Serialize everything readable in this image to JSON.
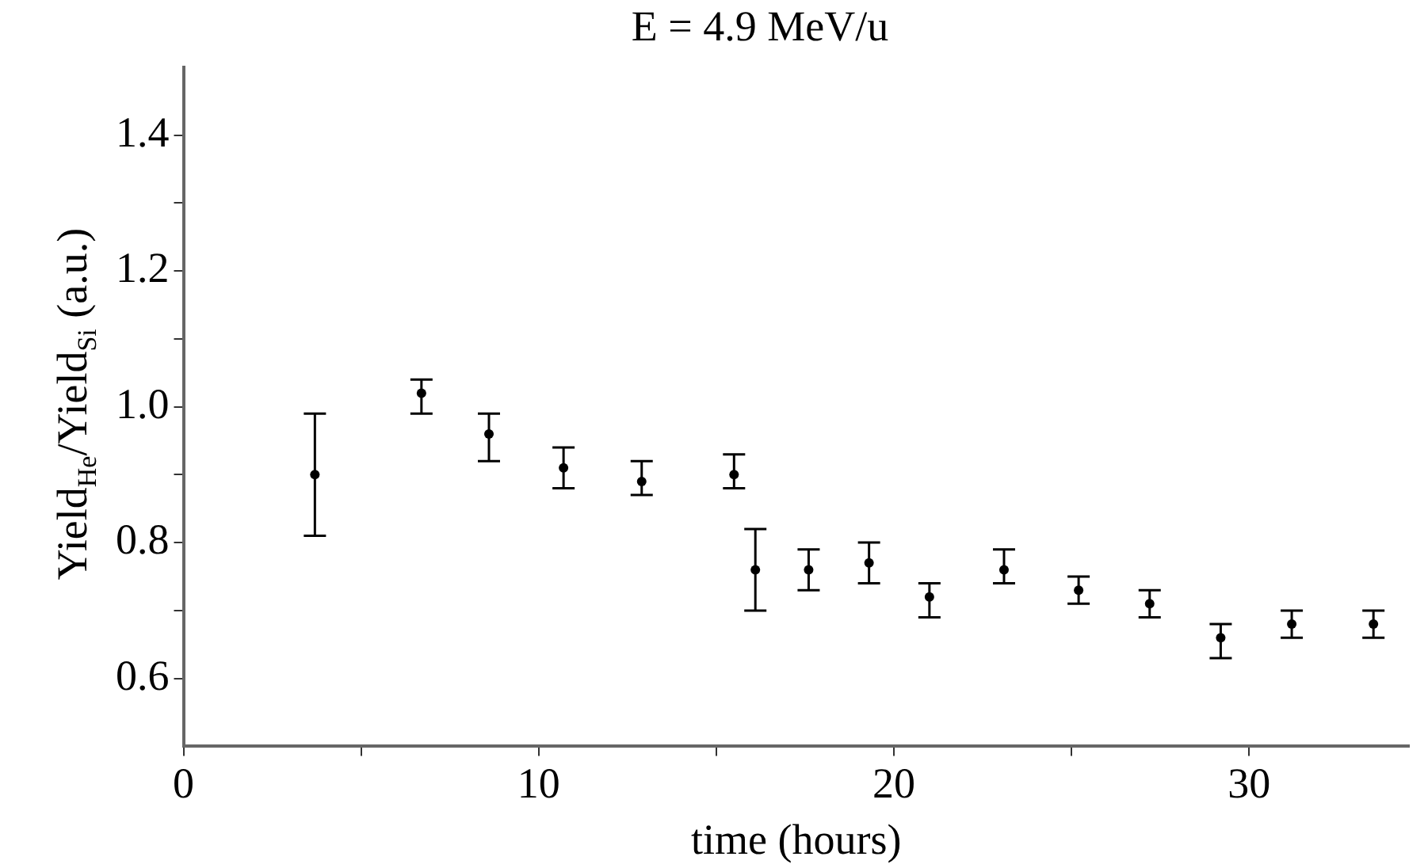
{
  "chart_data": {
    "type": "scatter",
    "title": "E = 4.9 MeV/u",
    "xlabel": "time (hours)",
    "ylabel": "Yield$_{He}$/Yield$_{Si}$ (a.u.)",
    "x": [
      3.7,
      6.7,
      8.6,
      10.7,
      12.9,
      15.5,
      16.1,
      17.6,
      19.3,
      21.0,
      23.1,
      25.2,
      27.2,
      29.2,
      31.2,
      33.5
    ],
    "series": [
      {
        "color": "#000000",
        "values": [
          0.9,
          1.02,
          0.96,
          0.91,
          0.89,
          0.9,
          0.76,
          0.76,
          0.77,
          0.72,
          0.76,
          0.73,
          0.71,
          0.66,
          0.68,
          0.68
        ],
        "errors": [
          [
            0.81,
            0.99
          ],
          [
            0.99,
            1.04
          ],
          [
            0.92,
            0.99
          ],
          [
            0.88,
            0.94
          ],
          [
            0.87,
            0.92
          ],
          [
            0.88,
            0.93
          ],
          [
            0.7,
            0.82
          ],
          [
            0.73,
            0.79
          ],
          [
            0.74,
            0.8
          ],
          [
            0.69,
            0.74
          ],
          [
            0.74,
            0.79
          ],
          [
            0.71,
            0.75
          ],
          [
            0.69,
            0.73
          ],
          [
            0.63,
            0.68
          ],
          [
            0.66,
            0.7
          ],
          [
            0.66,
            0.7
          ]
        ]
      }
    ],
    "xlim": [
      0,
      34.5
    ],
    "xticks": [
      0,
      {
        "value": 5,
        "label": null
      },
      10,
      {
        "value": 15,
        "label": null
      },
      20,
      {
        "value": 25,
        "label": null
      },
      30
    ],
    "ylim": [
      0.5,
      1.5
    ],
    "yticks": [
      {
        "value": 0.6,
        "label": "0.6"
      },
      {
        "value": 0.7,
        "label": null
      },
      {
        "value": 0.8,
        "label": "0.8"
      },
      {
        "value": 0.9,
        "label": null
      },
      {
        "value": 1.0,
        "label": "1.0"
      },
      {
        "value": 1.1,
        "label": null
      },
      {
        "value": 1.2,
        "label": "1.2"
      },
      {
        "value": 1.3,
        "label": null
      },
      {
        "value": 1.4,
        "label": "1.4"
      }
    ],
    "grid": false,
    "legend": false,
    "marker": "circle"
  }
}
